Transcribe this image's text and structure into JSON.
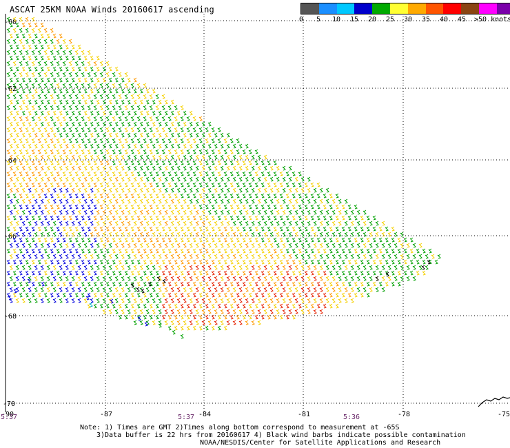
{
  "title": "ASCAT 25KM NOAA Winds 20160617 ascending",
  "legend": {
    "labels": [
      "0",
      "5",
      "10",
      "15",
      "20",
      "25",
      "30",
      "35",
      "40",
      "45",
      ">50 knots"
    ],
    "colors": [
      "#555555",
      "#1b8fff",
      "#00c8ff",
      "#0000cc",
      "#00aa00",
      "#ffff33",
      "#ffaa00",
      "#ff5500",
      "#ff0000",
      "#8b4513",
      "#ff00ff",
      "#7a00aa"
    ]
  },
  "axes": {
    "latitudes": [
      "-60",
      "-62",
      "-64",
      "-66",
      "-68",
      "-70"
    ],
    "longitudes": [
      "-90",
      "-87",
      "-84",
      "-81",
      "-78",
      "-75"
    ]
  },
  "times": [
    "5:37",
    "5:37",
    "5:36"
  ],
  "notes": {
    "line1": "Note: 1) Times are GMT 2)Times along bottom correspond to measurement at -65S",
    "line2": "3)Data buffer is 22 hrs from 20160617 4) Black wind barbs indicate possible contamination",
    "line3": "NOAA/NESDIS/Center for Satellite Applications and Research"
  },
  "wind_colors": {
    "green": "#00a000",
    "yellow": "#f5d000",
    "orange": "#ff9900",
    "red": "#e62000",
    "blue": "#0000dd",
    "black": "#000000",
    "cyan": "#00b0d0"
  }
}
